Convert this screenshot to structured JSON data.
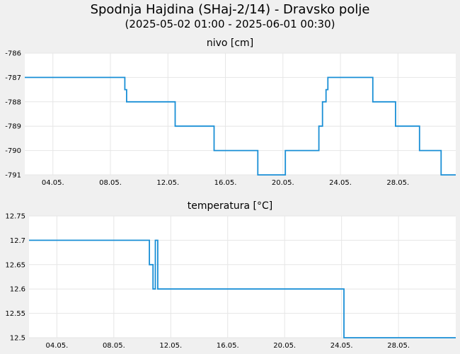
{
  "header": {
    "title": "Spodnja Hajdina (SHaj-2/14) - Dravsko polje",
    "subtitle": "(2025-05-02 01:00 - 2025-06-01 00:30)"
  },
  "colors": {
    "line": "#1a8fd6",
    "grid": "#e6e6e6",
    "plot_bg": "#ffffff",
    "page_bg": "#f0f0f0"
  },
  "chart_data": [
    {
      "type": "line",
      "title": "nivo [cm]",
      "x_range": [
        "2025-05-02 01:00",
        "2025-06-01 00:30"
      ],
      "ylim": [
        -791,
        -786
      ],
      "yticks": [
        -786,
        -787,
        -788,
        -789,
        -790,
        -791
      ],
      "xtick_labels": [
        "04.05.",
        "08.05.",
        "12.05.",
        "16.05.",
        "20.05.",
        "24.05.",
        "28.05."
      ],
      "grid": true,
      "series": [
        {
          "x": [
            "2025-05-02 01:00",
            "2025-05-09 00:00",
            "2025-05-09 03:00",
            "2025-05-12 12:00",
            "2025-05-15 05:00",
            "2025-05-18 06:00",
            "2025-05-20 04:00",
            "2025-05-22 12:00",
            "2025-05-22 18:00",
            "2025-05-23 00:00",
            "2025-05-23 03:00",
            "2025-05-26 06:00",
            "2025-05-27 20:00",
            "2025-05-29 12:00",
            "2025-05-31 00:00",
            "2025-06-01 00:30"
          ],
          "y": [
            -787,
            -787.5,
            -788,
            -789,
            -790,
            -791,
            -790,
            -789,
            -788,
            -787.5,
            -787,
            -788,
            -789,
            -790,
            -791,
            -791
          ]
        }
      ]
    },
    {
      "type": "line",
      "title": "temperatura [°C]",
      "x_range": [
        "2025-05-02 01:00",
        "2025-06-01 00:30"
      ],
      "ylim": [
        12.5,
        12.75
      ],
      "yticks": [
        "12.75",
        "12.7",
        "12.65",
        "12.6",
        "12.55",
        "12.5"
      ],
      "xtick_labels": [
        "04.05.",
        "08.05.",
        "12.05.",
        "16.05.",
        "20.05.",
        "24.05.",
        "28.05."
      ],
      "grid": true,
      "series": [
        {
          "x": [
            "2025-05-02 01:00",
            "2025-05-10 12:00",
            "2025-05-10 18:00",
            "2025-05-10 22:00",
            "2025-05-11 02:00",
            "2025-05-24 00:00",
            "2025-05-24 04:00",
            "2025-06-01 00:30"
          ],
          "y": [
            12.7,
            12.65,
            12.6,
            12.7,
            12.6,
            12.6,
            12.5,
            12.5
          ]
        }
      ]
    }
  ]
}
